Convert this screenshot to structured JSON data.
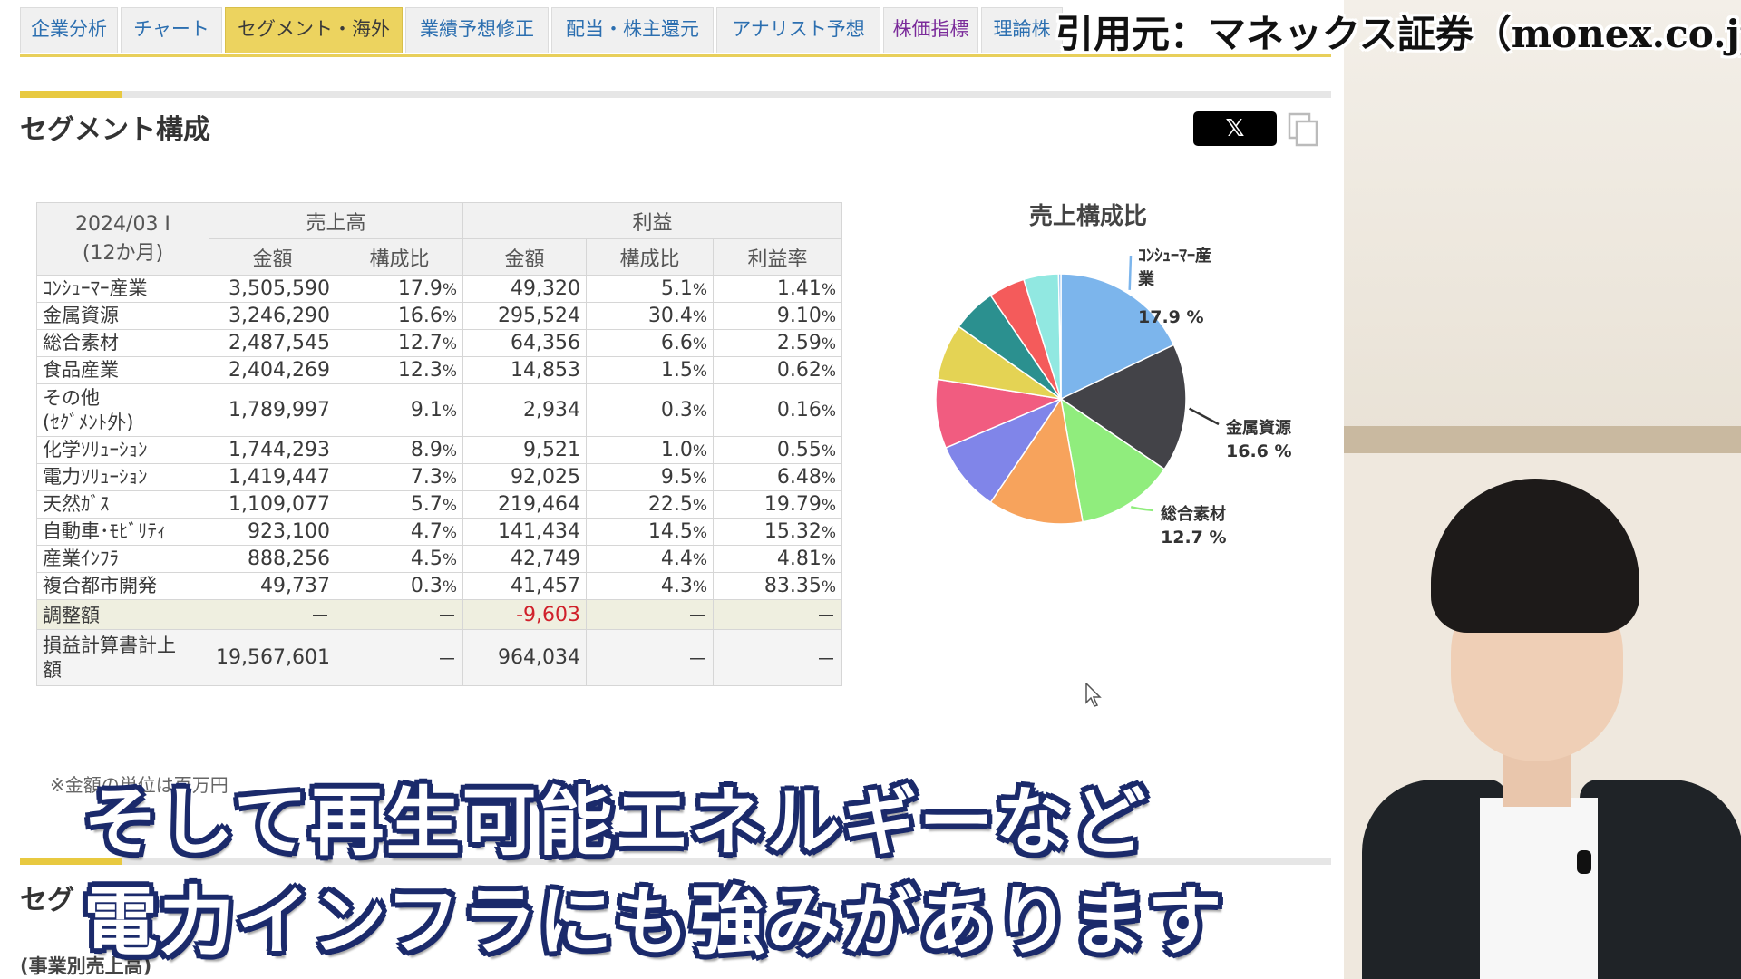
{
  "tabs": [
    {
      "label": "企業分析",
      "active": false
    },
    {
      "label": "チャート",
      "active": false
    },
    {
      "label": "セグメント・海外",
      "active": true
    },
    {
      "label": "業績予想修正",
      "active": false
    },
    {
      "label": "配当・株主還元",
      "active": false
    },
    {
      "label": "アナリスト予想",
      "active": false
    },
    {
      "label": "株価指標",
      "active": false
    },
    {
      "label": "理論株",
      "active": false
    }
  ],
  "source_caption": "引用元：マネックス証券（monex.co.jp）",
  "section": {
    "title": "セグメント構成",
    "share_label": "𝕏"
  },
  "table": {
    "period": "2024/03 I",
    "period_sub": "(12か月)",
    "group_sales": "売上高",
    "group_profit": "利益",
    "col_amount": "金額",
    "col_ratio": "構成比",
    "col_profit_rate": "利益率",
    "rows": [
      {
        "name": "ｺﾝｼｭｰﾏｰ産業",
        "sales": "3,505,590",
        "sales_ratio": "17.9",
        "profit": "49,320",
        "profit_ratio": "5.1",
        "margin": "1.41"
      },
      {
        "name": "金属資源",
        "sales": "3,246,290",
        "sales_ratio": "16.6",
        "profit": "295,524",
        "profit_ratio": "30.4",
        "margin": "9.10"
      },
      {
        "name": "総合素材",
        "sales": "2,487,545",
        "sales_ratio": "12.7",
        "profit": "64,356",
        "profit_ratio": "6.6",
        "margin": "2.59"
      },
      {
        "name": "食品産業",
        "sales": "2,404,269",
        "sales_ratio": "12.3",
        "profit": "14,853",
        "profit_ratio": "1.5",
        "margin": "0.62"
      },
      {
        "name": "その他",
        "name2": "(ｾｸﾞﾒﾝﾄ外)",
        "sales": "1,789,997",
        "sales_ratio": "9.1",
        "profit": "2,934",
        "profit_ratio": "0.3",
        "margin": "0.16"
      },
      {
        "name": "化学ｿﾘｭｰｼｮﾝ",
        "sales": "1,744,293",
        "sales_ratio": "8.9",
        "profit": "9,521",
        "profit_ratio": "1.0",
        "margin": "0.55"
      },
      {
        "name": "電力ｿﾘｭｰｼｮﾝ",
        "sales": "1,419,447",
        "sales_ratio": "7.3",
        "profit": "92,025",
        "profit_ratio": "9.5",
        "margin": "6.48"
      },
      {
        "name": "天然ｶﾞｽ",
        "sales": "1,109,077",
        "sales_ratio": "5.7",
        "profit": "219,464",
        "profit_ratio": "22.5",
        "margin": "19.79"
      },
      {
        "name": "自動車･ﾓﾋﾞﾘﾃｨ",
        "sales": "923,100",
        "sales_ratio": "4.7",
        "profit": "141,434",
        "profit_ratio": "14.5",
        "margin": "15.32"
      },
      {
        "name": "産業ｲﾝﾌﾗ",
        "sales": "888,256",
        "sales_ratio": "4.5",
        "profit": "42,749",
        "profit_ratio": "4.4",
        "margin": "4.81"
      },
      {
        "name": "複合都市開発",
        "sales": "49,737",
        "sales_ratio": "0.3",
        "profit": "41,457",
        "profit_ratio": "4.3",
        "margin": "83.35"
      }
    ],
    "adjust": {
      "name": "調整額",
      "dash": "－",
      "profit": "-9,603"
    },
    "total": {
      "name": "損益計算書計上",
      "name2": "額",
      "sales": "19,567,601",
      "profit": "964,034",
      "dash": "－"
    },
    "pct_sign": "%",
    "note": "※金額の単位は百万円"
  },
  "chart_data": {
    "type": "pie",
    "title": "売上構成比",
    "labels": [
      "ｺﾝｼｭｰﾏｰ産業",
      "金属資源",
      "総合素材",
      "食品産業",
      "その他(ｾｸﾞﾒﾝﾄ外)",
      "化学ｿﾘｭｰｼｮﾝ",
      "電力ｿﾘｭｰｼｮﾝ",
      "天然ｶﾞｽ",
      "自動車･ﾓﾋﾞﾘﾃｨ",
      "産業ｲﾝﾌﾗ",
      "複合都市開発"
    ],
    "values": [
      17.9,
      16.6,
      12.7,
      12.3,
      9.1,
      8.9,
      7.3,
      5.7,
      4.7,
      4.5,
      0.3
    ],
    "colors": [
      "#7cb5ec",
      "#434348",
      "#90ed7d",
      "#f7a35c",
      "#8085e9",
      "#f15c80",
      "#e4d354",
      "#2b908f",
      "#f45b5b",
      "#91e8e1",
      "#7cb5ec"
    ],
    "callouts": [
      {
        "line1": "ｺﾝｼｭｰﾏｰ産",
        "line2": "業",
        "value": "17.9 %"
      },
      {
        "line1": "金属資源",
        "value": "16.6 %"
      },
      {
        "line1": "総合素材",
        "value": "12.7 %"
      }
    ]
  },
  "section2": {
    "title": "セグ",
    "sub": "(事業別売上高)"
  },
  "subtitles": {
    "line1": "そして再生可能エネルギーなど",
    "line2": "電力インフラにも強みがあります"
  }
}
